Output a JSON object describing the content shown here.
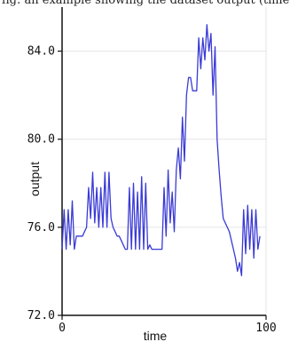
{
  "page_header": {
    "text": "fig: an example showing the dataset output (time series)"
  },
  "chart_data": {
    "type": "line",
    "title": "",
    "xlabel": "time",
    "ylabel": "output",
    "xlim": [
      0,
      100
    ],
    "ylim": [
      72.0,
      86.0
    ],
    "xticks": [
      0,
      100
    ],
    "yticks": [
      72.0,
      76.0,
      80.0,
      84.0
    ],
    "ytick_labels": [
      "72.0",
      "76.0",
      "80.0",
      "84.0"
    ],
    "grid": true,
    "line_color": "#3a3ad6",
    "series": [
      {
        "x": [
          0,
          1,
          2,
          3,
          4,
          5,
          6,
          7,
          8,
          9,
          10,
          11,
          12,
          13,
          14,
          15,
          16,
          17,
          18,
          19,
          20,
          21,
          22,
          23,
          24,
          25,
          26,
          27,
          28,
          29,
          30,
          31,
          32,
          33,
          34,
          35,
          36,
          37,
          38,
          39,
          40,
          41,
          42,
          43,
          44,
          45,
          46,
          47,
          48,
          49,
          50,
          51,
          52,
          53,
          54,
          55,
          56,
          57,
          58,
          59,
          60,
          61,
          62,
          63,
          64,
          65,
          66,
          67,
          68,
          69,
          70,
          71,
          72,
          73,
          74,
          75,
          76,
          77,
          78,
          79,
          80,
          81,
          82,
          83,
          84,
          85,
          86,
          87,
          88,
          89,
          90,
          91,
          92,
          93,
          94,
          95,
          96,
          97
        ],
        "values": [
          75.0,
          76.8,
          75.0,
          76.8,
          75.2,
          77.2,
          75.0,
          75.6,
          75.6,
          75.6,
          75.6,
          75.8,
          76.0,
          77.8,
          76.4,
          78.5,
          76.2,
          77.8,
          76.0,
          77.8,
          76.0,
          78.5,
          76.0,
          78.5,
          76.4,
          76.0,
          75.8,
          75.6,
          75.6,
          75.4,
          75.2,
          75.0,
          75.0,
          77.8,
          75.0,
          78.0,
          75.0,
          77.6,
          75.0,
          78.3,
          75.0,
          78.0,
          75.0,
          75.2,
          75.0,
          75.0,
          75.0,
          75.0,
          75.0,
          75.0,
          77.8,
          75.6,
          78.6,
          76.2,
          77.6,
          75.8,
          78.6,
          79.6,
          78.2,
          81.0,
          79.0,
          82.0,
          82.8,
          82.8,
          82.2,
          82.2,
          82.2,
          84.6,
          83.2,
          84.6,
          83.6,
          85.2,
          84.0,
          84.8,
          82.0,
          84.2,
          80.0,
          78.6,
          77.4,
          76.4,
          76.2,
          76.0,
          75.8,
          75.4,
          75.0,
          74.6,
          74.0,
          74.4,
          73.8,
          76.8,
          74.8,
          77.0,
          75.0,
          76.8,
          74.6,
          76.8,
          75.0,
          75.6
        ]
      }
    ]
  }
}
